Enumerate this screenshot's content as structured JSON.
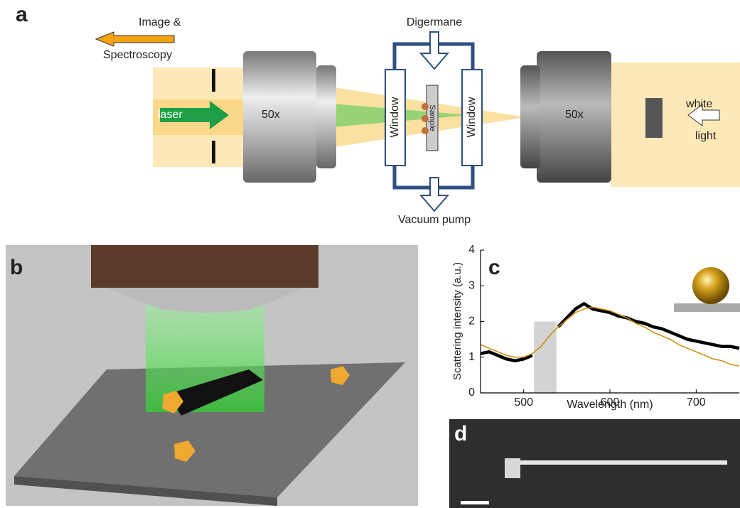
{
  "panel_labels": [
    "a",
    "b",
    "c",
    "d"
  ],
  "panel_a": {
    "output_label": [
      "Image &",
      "Spectroscopy"
    ],
    "gas": "Digermane",
    "pump": "Vacuum pump",
    "laser": "laser",
    "objective_left": "50x",
    "objective_right": "50x",
    "window_left": "Window",
    "window_right": "Window",
    "sample": "Sample",
    "light": [
      "white",
      "light"
    ]
  },
  "chart_data": {
    "type": "line",
    "xlabel": "Wavelength (nm)",
    "ylabel": "Scattering intensity (a.u.)",
    "x": [
      450,
      460,
      470,
      480,
      490,
      500,
      510,
      520,
      530,
      540,
      550,
      560,
      570,
      580,
      590,
      600,
      610,
      620,
      630,
      640,
      650,
      660,
      670,
      680,
      690,
      700,
      710,
      720,
      730,
      740,
      750
    ],
    "series": [
      {
        "color": "#000000",
        "values": [
          1.1,
          1.15,
          1.05,
          0.95,
          0.9,
          0.95,
          1.05,
          null,
          null,
          1.85,
          2.1,
          2.35,
          2.5,
          2.35,
          2.3,
          2.25,
          2.15,
          2.1,
          2.0,
          1.95,
          1.85,
          1.8,
          1.7,
          1.6,
          1.5,
          1.45,
          1.4,
          1.35,
          1.3,
          1.3,
          1.25
        ]
      },
      {
        "color": "#d08a00",
        "values": [
          1.35,
          1.25,
          1.15,
          1.05,
          1.0,
          1.0,
          1.1,
          1.3,
          1.6,
          1.85,
          2.05,
          2.25,
          2.35,
          2.4,
          2.35,
          2.3,
          2.2,
          2.1,
          1.95,
          1.85,
          1.7,
          1.6,
          1.5,
          1.35,
          1.25,
          1.15,
          1.05,
          0.95,
          0.9,
          0.8,
          0.75
        ]
      }
    ],
    "shade": {
      "x": [
        512,
        538
      ],
      "y": [
        0,
        2
      ],
      "color": "#d3d3d3"
    },
    "xlim": [
      450,
      750
    ],
    "xticks": [
      500,
      600,
      700
    ],
    "ylim": [
      0,
      4
    ],
    "yticks": [
      0,
      1,
      2,
      3,
      4
    ]
  }
}
